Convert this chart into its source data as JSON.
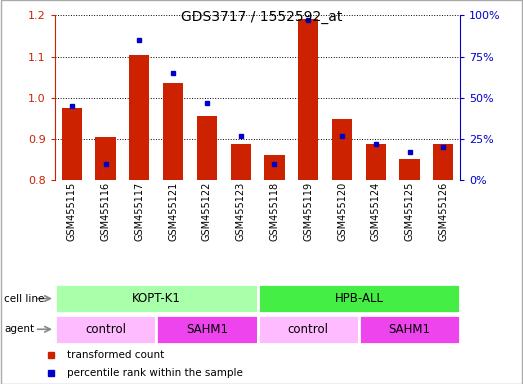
{
  "title": "GDS3717 / 1552592_at",
  "samples": [
    "GSM455115",
    "GSM455116",
    "GSM455117",
    "GSM455121",
    "GSM455122",
    "GSM455123",
    "GSM455118",
    "GSM455119",
    "GSM455120",
    "GSM455124",
    "GSM455125",
    "GSM455126"
  ],
  "red_values": [
    0.975,
    0.905,
    1.105,
    1.035,
    0.955,
    0.888,
    0.862,
    1.19,
    0.948,
    0.888,
    0.852,
    0.888
  ],
  "blue_values_pct": [
    45,
    10,
    85,
    65,
    47,
    27,
    10,
    97,
    27,
    22,
    17,
    20
  ],
  "ylim_left": [
    0.8,
    1.2
  ],
  "ylim_right": [
    0,
    100
  ],
  "yticks_left": [
    0.8,
    0.9,
    1.0,
    1.1,
    1.2
  ],
  "yticks_right": [
    0,
    25,
    50,
    75,
    100
  ],
  "ytick_labels_right": [
    "0%",
    "25%",
    "50%",
    "75%",
    "100%"
  ],
  "red_color": "#cc2200",
  "blue_color": "#0000cc",
  "cell_line_groups": [
    {
      "label": "KOPT-K1",
      "start": 0,
      "end": 6,
      "color": "#aaffaa"
    },
    {
      "label": "HPB-ALL",
      "start": 6,
      "end": 12,
      "color": "#44ee44"
    }
  ],
  "agent_groups": [
    {
      "label": "control",
      "start": 0,
      "end": 3,
      "color": "#ffbbff"
    },
    {
      "label": "SAHM1",
      "start": 3,
      "end": 6,
      "color": "#ee44ee"
    },
    {
      "label": "control",
      "start": 6,
      "end": 9,
      "color": "#ffbbff"
    },
    {
      "label": "SAHM1",
      "start": 9,
      "end": 12,
      "color": "#ee44ee"
    }
  ],
  "legend_items": [
    {
      "label": "transformed count",
      "color": "#cc2200"
    },
    {
      "label": "percentile rank within the sample",
      "color": "#0000cc"
    }
  ],
  "bar_width": 0.6,
  "baseline": 0.8,
  "tick_bg_color": "#dddddd",
  "title_fontsize": 10
}
